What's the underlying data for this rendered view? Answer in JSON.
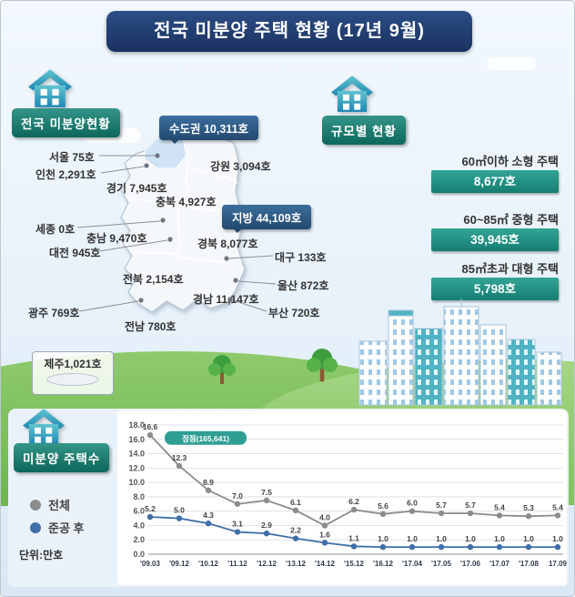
{
  "header": {
    "title": "전국 미분양 주택 현황 (17년 9월)"
  },
  "sections": {
    "national": {
      "title": "전국 미분양현황"
    },
    "scale": {
      "title": "규모별 현황"
    },
    "trend": {
      "title": "미분양 주택수"
    }
  },
  "map": {
    "capital_badge": "수도권 10,311호",
    "local_badge": "지방 44,109호",
    "regions": [
      {
        "name": "seoul",
        "text": "서울 75호"
      },
      {
        "name": "incheon",
        "text": "인천 2,291호"
      },
      {
        "name": "gyeonggi",
        "text": "경기 7,945호"
      },
      {
        "name": "gangwon",
        "text": "강원 3,094호"
      },
      {
        "name": "chungbuk",
        "text": "충북 4,927호"
      },
      {
        "name": "sejong",
        "text": "세종 0호"
      },
      {
        "name": "chungnam",
        "text": "충남 9,470호"
      },
      {
        "name": "daejeon",
        "text": "대전 945호"
      },
      {
        "name": "gyeongbuk",
        "text": "경북 8,077호"
      },
      {
        "name": "daegu",
        "text": "대구 133호"
      },
      {
        "name": "jeonbuk",
        "text": "전북 2,154호"
      },
      {
        "name": "ulsan",
        "text": "울산 872호"
      },
      {
        "name": "gyeongnam",
        "text": "경남 11,147호"
      },
      {
        "name": "busan",
        "text": "부산 720호"
      },
      {
        "name": "gwangju",
        "text": "광주 769호"
      },
      {
        "name": "jeonnam",
        "text": "전남 780호"
      },
      {
        "name": "jeju",
        "text": "제주1,021호"
      }
    ]
  },
  "scale": {
    "items": [
      {
        "label": "60㎡이하 소형 주택",
        "value": "8,677호"
      },
      {
        "label": "60~85㎡ 중형 주택",
        "value": "39,945호"
      },
      {
        "label": "85㎡초과 대형 주택",
        "value": "5,798호"
      }
    ]
  },
  "legend": {
    "total": "전체",
    "after": "준공 후",
    "unit": "단위:만호"
  },
  "chart_data": {
    "type": "line",
    "x": [
      "'09.03",
      "'09.12",
      "'10.12",
      "'11.12",
      "'12.12",
      "'13.12",
      "'14.12",
      "'15.12",
      "'16.12",
      "'17.04",
      "'17.05",
      "'17.06",
      "'17.07",
      "'17.08",
      "17.09"
    ],
    "series": [
      {
        "name": "전체",
        "color": "#8c8c8c",
        "values": [
          16.6,
          12.3,
          8.9,
          7.0,
          7.5,
          6.1,
          4.0,
          6.2,
          5.6,
          6.0,
          5.7,
          5.7,
          5.4,
          5.3,
          5.4
        ]
      },
      {
        "name": "준공 후",
        "color": "#3f6fa8",
        "values": [
          5.2,
          5.0,
          4.3,
          3.1,
          2.9,
          2.2,
          1.6,
          1.1,
          1.0,
          1.0,
          1.0,
          1.0,
          1.0,
          1.0,
          1.0
        ]
      }
    ],
    "ylim": [
      0,
      18
    ],
    "ytick_step": 2,
    "grid": true,
    "legend_position": "left",
    "annotation": "정점(165,641)",
    "unit_label": "단위:만호",
    "title": "미분양 주택수"
  }
}
